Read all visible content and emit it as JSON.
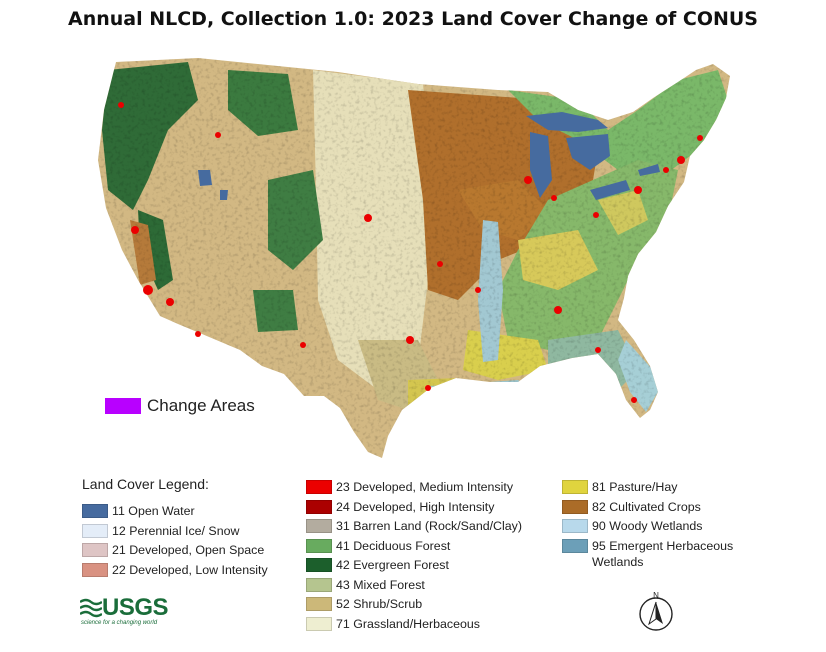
{
  "title": "Annual NLCD, Collection 1.0: 2023 Land Cover Change of CONUS",
  "change_areas": {
    "label": "Change Areas",
    "color": "#b800ff"
  },
  "legend": {
    "heading": "Land Cover Legend:",
    "columns": [
      [
        {
          "code": "11",
          "label": "11 Open Water",
          "color": "#466b9f"
        },
        {
          "code": "12",
          "label": "12 Perennial Ice/ Snow",
          "color": "#e4edf8"
        },
        {
          "code": "21",
          "label": "21 Developed, Open Space",
          "color": "#dec5c5"
        },
        {
          "code": "22",
          "label": "22 Developed, Low Intensity",
          "color": "#d99282"
        }
      ],
      [
        {
          "code": "23",
          "label": "23 Developed, Medium Intensity",
          "color": "#eb0000"
        },
        {
          "code": "24",
          "label": "24 Developed, High Intensity",
          "color": "#ab0000"
        },
        {
          "code": "31",
          "label": "31 Barren Land (Rock/Sand/Clay)",
          "color": "#b3ac9f"
        },
        {
          "code": "41",
          "label": "41 Deciduous Forest",
          "color": "#68ab5f"
        },
        {
          "code": "42",
          "label": "42 Evergreen Forest",
          "color": "#1c5f2c"
        },
        {
          "code": "43",
          "label": "43 Mixed Forest",
          "color": "#b5c58f"
        },
        {
          "code": "52",
          "label": "52 Shrub/Scrub",
          "color": "#ccb879"
        },
        {
          "code": "71",
          "label": "71 Grassland/Herbaceous",
          "color": "#eeeed1"
        }
      ],
      [
        {
          "code": "81",
          "label": "81 Pasture/Hay",
          "color": "#e0d43e"
        },
        {
          "code": "82",
          "label": "82 Cultivated Crops",
          "color": "#ab6c28"
        },
        {
          "code": "90",
          "label": "90 Woody Wetlands",
          "color": "#b8d9eb"
        },
        {
          "code": "95",
          "label": "95 Emergent Herbaceous\nWetlands",
          "color": "#6c9fb8"
        }
      ]
    ]
  },
  "logo": {
    "name": "USGS",
    "tagline": "science for a changing world"
  },
  "north_arrow": {
    "label": "N"
  }
}
